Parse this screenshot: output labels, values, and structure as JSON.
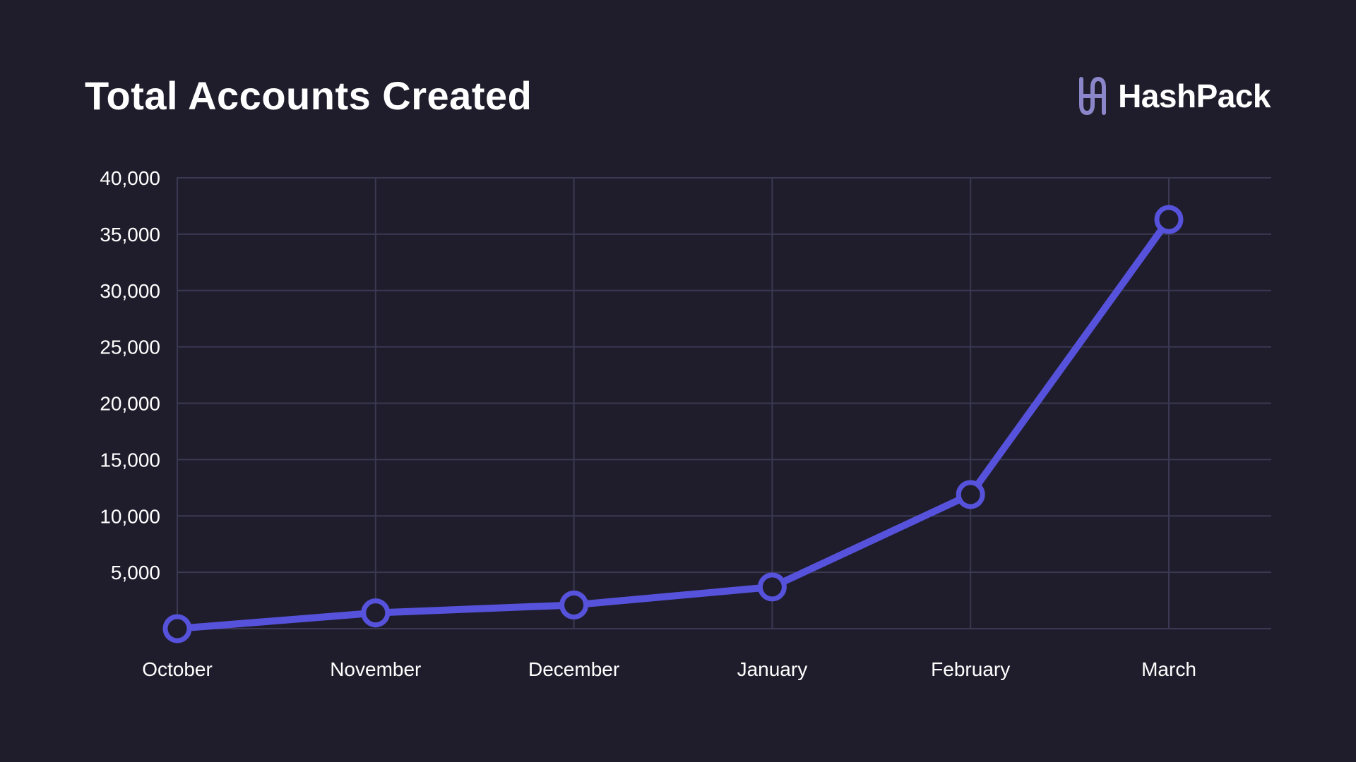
{
  "header": {
    "title": "Total Accounts Created"
  },
  "brand": {
    "name": "HashPack",
    "logo_icon": "hashpack-logo-icon",
    "logo_color": "#8b86c9"
  },
  "colors": {
    "background": "#1f1d2b",
    "line": "#5652db",
    "marker_fill": "#1f1d2b",
    "grid": "#3a3852",
    "text": "#ffffff"
  },
  "chart_data": {
    "type": "line",
    "title": "Total Accounts Created",
    "xlabel": "",
    "ylabel": "",
    "categories": [
      "October",
      "November",
      "December",
      "January",
      "February",
      "March"
    ],
    "series": [
      {
        "values": [
          0,
          1400,
          2100,
          3700,
          11900,
          36300
        ]
      }
    ],
    "ylim": [
      0,
      40000
    ],
    "yticks": [
      5000,
      10000,
      15000,
      20000,
      25000,
      30000,
      35000,
      40000
    ],
    "ytick_labels": [
      "5,000",
      "10,000",
      "15,000",
      "20,000",
      "25,000",
      "30,000",
      "35,000",
      "40,000"
    ],
    "grid": true,
    "legend": "none"
  }
}
